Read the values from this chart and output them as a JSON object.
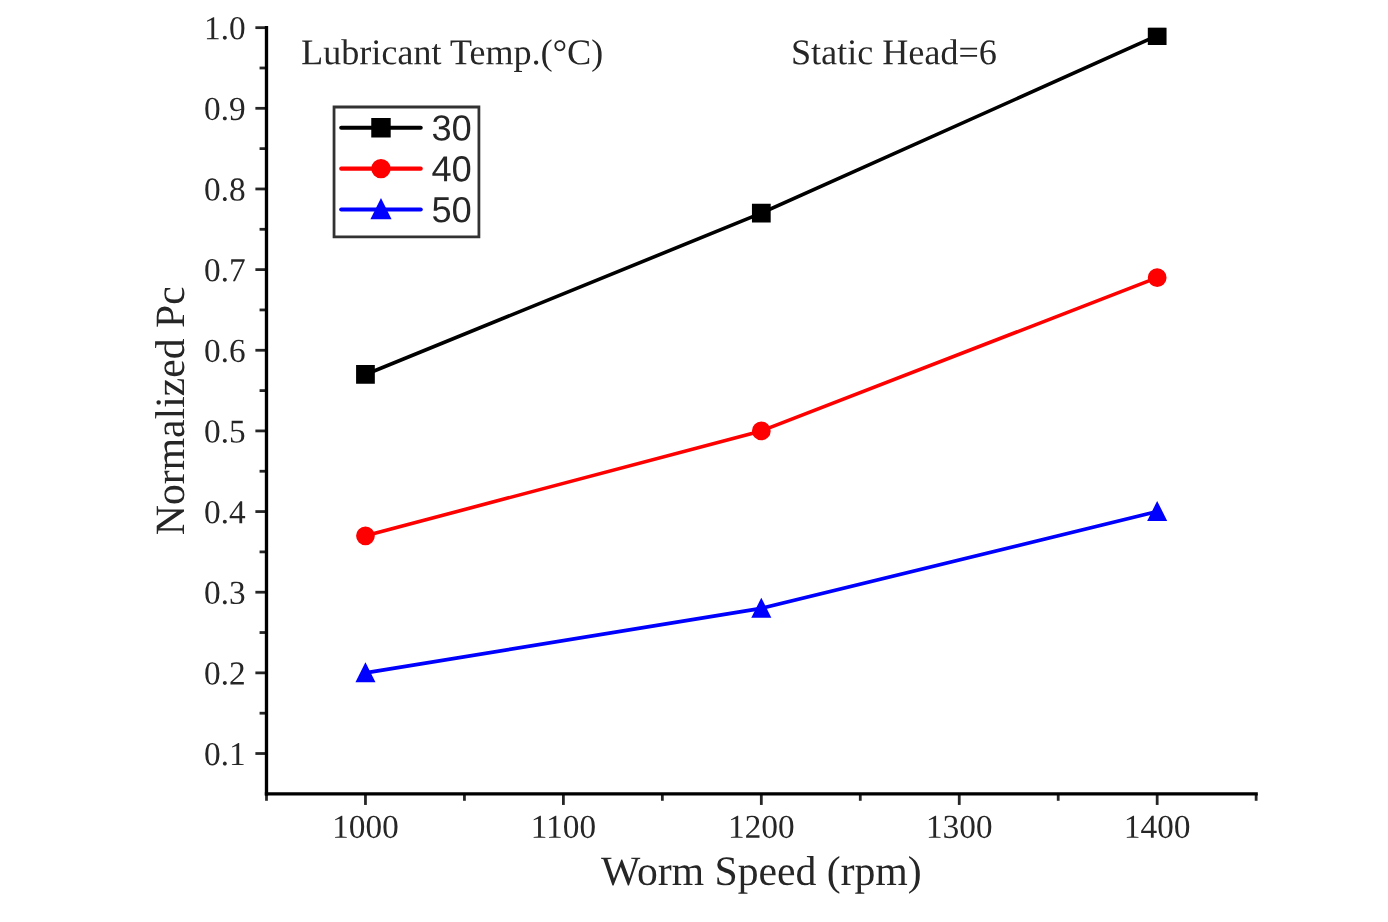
{
  "chart_data": {
    "type": "line",
    "xlabel": "Worm Speed (rpm)",
    "ylabel": "Normalized Pc",
    "legend_title": "Lubricant Temp.(°C)",
    "annotations": [
      "Static Head=6"
    ],
    "x": [
      1000,
      1200,
      1400
    ],
    "series": [
      {
        "name": "30",
        "color": "#000000",
        "marker": "square",
        "values": [
          0.57,
          0.77,
          0.99
        ]
      },
      {
        "name": "40",
        "color": "#ff0000",
        "marker": "circle",
        "values": [
          0.37,
          0.5,
          0.69
        ]
      },
      {
        "name": "50",
        "color": "#0000ff",
        "marker": "triangle",
        "values": [
          0.2,
          0.28,
          0.4
        ]
      }
    ],
    "xlim": [
      950,
      1450
    ],
    "xticks": [
      {
        "value": 950,
        "label": null
      },
      1000,
      {
        "value": 1050,
        "label": null
      },
      1100,
      {
        "value": 1150,
        "label": null
      },
      1200,
      {
        "value": 1250,
        "label": null
      },
      1300,
      {
        "value": 1350,
        "label": null
      },
      1400,
      {
        "value": 1450,
        "label": null
      }
    ],
    "ylim": [
      0.05,
      1.0
    ],
    "yticks": [
      0.1,
      {
        "value": 0.15,
        "label": null
      },
      0.2,
      {
        "value": 0.25,
        "label": null
      },
      0.3,
      {
        "value": 0.35,
        "label": null
      },
      0.4,
      {
        "value": 0.45,
        "label": null
      },
      0.5,
      {
        "value": 0.55,
        "label": null
      },
      0.6,
      {
        "value": 0.65,
        "label": null
      },
      0.7,
      {
        "value": 0.75,
        "label": null
      },
      0.8,
      {
        "value": 0.85,
        "label": null
      },
      0.9,
      {
        "value": 0.95,
        "label": null
      },
      {
        "value": 1.0,
        "label": "1.0"
      }
    ],
    "grid": false,
    "legend": "top left",
    "line_style": "solid"
  }
}
